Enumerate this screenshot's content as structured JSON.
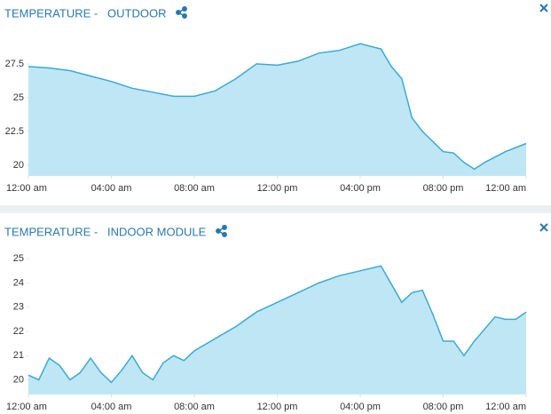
{
  "chart_data": [
    {
      "type": "area",
      "title": "TEMPERATURE -   OUTDOOR",
      "color": "#3aaad6",
      "fill": "#bfe6f5",
      "xlim": [
        0,
        24
      ],
      "xticks": [
        {
          "value": 0,
          "label": "12:00 am"
        },
        {
          "value": 4,
          "label": "04:00 am"
        },
        {
          "value": 8,
          "label": "08:00 am"
        },
        {
          "value": 12,
          "label": "12:00 pm"
        },
        {
          "value": 16,
          "label": "04:00 pm"
        },
        {
          "value": 20,
          "label": "08:00 pm"
        },
        {
          "value": 24,
          "label": "12:00 am"
        }
      ],
      "ylim": [
        19.2,
        29.6
      ],
      "yticks": [
        20,
        22.5,
        25,
        27.5
      ],
      "x": [
        0,
        1,
        2,
        3,
        4,
        5,
        6,
        7,
        8,
        9,
        10,
        11,
        12,
        13,
        14,
        15,
        16,
        17,
        17.5,
        18,
        18.5,
        19,
        20,
        20.5,
        21,
        21.5,
        22,
        23,
        24
      ],
      "values": [
        27.3,
        27.2,
        27.0,
        26.6,
        26.2,
        25.7,
        25.4,
        25.1,
        25.1,
        25.5,
        26.4,
        27.5,
        27.4,
        27.7,
        28.3,
        28.5,
        29.0,
        28.6,
        27.3,
        26.4,
        23.5,
        22.5,
        21.0,
        20.9,
        20.2,
        19.7,
        20.2,
        21.0,
        21.6
      ]
    },
    {
      "type": "area",
      "title": "TEMPERATURE -   INDOOR MODULE",
      "color": "#3aaad6",
      "fill": "#bfe6f5",
      "xlim": [
        0,
        24
      ],
      "xticks": [
        {
          "value": 0,
          "label": "12:00 am"
        },
        {
          "value": 4,
          "label": "04:00 am"
        },
        {
          "value": 8,
          "label": "08:00 am"
        },
        {
          "value": 12,
          "label": "12:00 pm"
        },
        {
          "value": 16,
          "label": "04:00 pm"
        },
        {
          "value": 20,
          "label": "08:00 pm"
        },
        {
          "value": 24,
          "label": "12:00 am"
        }
      ],
      "ylim": [
        19.4,
        25.3
      ],
      "yticks": [
        20,
        21,
        22,
        23,
        24,
        25
      ],
      "x": [
        0,
        0.5,
        1,
        1.5,
        2,
        2.5,
        3,
        3.5,
        4,
        4.5,
        5,
        5.5,
        6,
        6.5,
        7,
        7.5,
        8,
        9,
        10,
        11,
        12,
        13,
        14,
        15,
        16,
        17,
        18,
        18.5,
        19,
        19.5,
        20,
        20.5,
        21,
        21.5,
        22,
        22.5,
        23,
        23.5,
        24
      ],
      "values": [
        20.2,
        20.0,
        20.9,
        20.6,
        20.0,
        20.3,
        20.9,
        20.3,
        19.9,
        20.4,
        21.0,
        20.3,
        20.0,
        20.7,
        21.0,
        20.8,
        21.2,
        21.7,
        22.2,
        22.8,
        23.2,
        23.6,
        24.0,
        24.3,
        24.5,
        24.7,
        23.2,
        23.6,
        23.7,
        22.7,
        21.6,
        21.6,
        21.0,
        21.6,
        22.1,
        22.6,
        22.5,
        22.5,
        22.8
      ]
    }
  ]
}
